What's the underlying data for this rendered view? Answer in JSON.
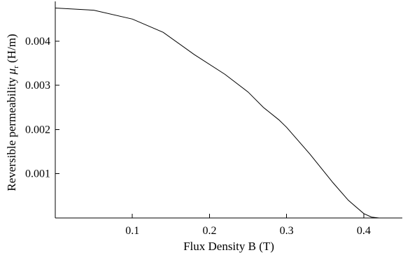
{
  "chart_data": {
    "type": "line",
    "title": "",
    "xlabel": "Flux Density B (T)",
    "ylabel": "Reversible permeability μr (H/m)",
    "ylabel_main": "Reversible permeability ",
    "ylabel_symbol": "μ",
    "ylabel_subscript": "r",
    "ylabel_units": " (H/m)",
    "xlim": [
      0.0,
      0.45
    ],
    "ylim": [
      0.0,
      0.0049
    ],
    "xticks": [
      0.1,
      0.2,
      0.3,
      0.4
    ],
    "xtick_labels": [
      "0.1",
      "0.2",
      "0.3",
      "0.4"
    ],
    "yticks": [
      0.001,
      0.002,
      0.003,
      0.004
    ],
    "ytick_labels": [
      "0.001",
      "0.002",
      "0.003",
      "0.004"
    ],
    "grid": false,
    "legend": "none",
    "series": [
      {
        "x": [
          0.0,
          0.05,
          0.1,
          0.14,
          0.18,
          0.22,
          0.25,
          0.27,
          0.29,
          0.3,
          0.33,
          0.36,
          0.38,
          0.4,
          0.41,
          0.42
        ],
        "y": [
          0.00475,
          0.0047,
          0.0045,
          0.0042,
          0.0037,
          0.00325,
          0.00285,
          0.0025,
          0.00222,
          0.00205,
          0.00145,
          0.0008,
          0.0004,
          0.0001,
          2e-05,
          0.0
        ]
      }
    ]
  }
}
